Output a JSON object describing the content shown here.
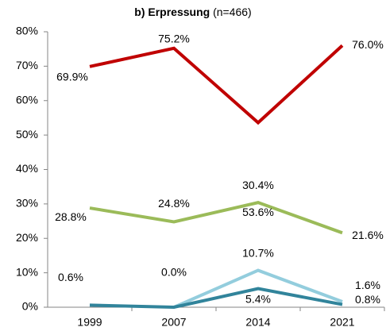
{
  "chart_data": {
    "type": "line",
    "title": "b) Erpressung",
    "subtitle": "(n=466)",
    "categories": [
      "1999",
      "2007",
      "2014",
      "2021"
    ],
    "series": [
      {
        "color": "#c00000",
        "values": [
          69.9,
          75.2,
          53.6,
          76.0
        ],
        "value_labels": [
          "69.9%",
          "75.2%",
          "53.6%",
          "76.0%"
        ]
      },
      {
        "color": "#9bbb59",
        "values": [
          28.8,
          24.8,
          30.4,
          21.6
        ],
        "value_labels": [
          "28.8%",
          "24.8%",
          "30.4%",
          "21.6%"
        ]
      },
      {
        "color": "#93cddd",
        "values": [
          null,
          0.0,
          10.7,
          1.6
        ],
        "value_labels": [
          null,
          "0.0%",
          "10.7%",
          "1.6%"
        ]
      },
      {
        "color": "#31849b",
        "values": [
          0.6,
          0.0,
          5.4,
          0.8
        ],
        "value_labels": [
          "0.6%",
          null,
          "5.4%",
          "0.8%"
        ]
      }
    ],
    "ylim": [
      0,
      80
    ],
    "yticks": [
      {
        "value": 0,
        "label": "0%"
      },
      {
        "value": 10,
        "label": "10%"
      },
      {
        "value": 20,
        "label": "20%"
      },
      {
        "value": 30,
        "label": "30%"
      },
      {
        "value": 40,
        "label": "40%"
      },
      {
        "value": 50,
        "label": "50%"
      },
      {
        "value": 60,
        "label": "60%"
      },
      {
        "value": 70,
        "label": "70%"
      },
      {
        "value": 80,
        "label": "80%"
      }
    ],
    "grid": false
  }
}
